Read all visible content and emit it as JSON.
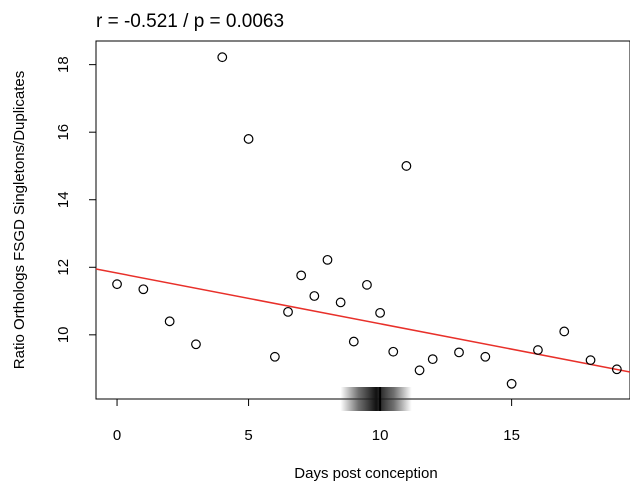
{
  "chart_data": {
    "type": "scatter",
    "title": "r = -0.521 / p = 0.0063",
    "xlabel": "Days post conception",
    "ylabel": "Ratio Orthologs FSGD Singletons/Duplicates",
    "xlim": [
      -0.8,
      19.5
    ],
    "ylim": [
      8.1,
      18.7
    ],
    "x_ticks": [
      0,
      5,
      10,
      15
    ],
    "y_ticks": [
      10,
      12,
      14,
      16,
      18
    ],
    "grid": false,
    "legend": "none",
    "colors": {
      "points": "#000000",
      "fit_line": "#e8302a",
      "axis": "#000000",
      "density_rug": "#333333"
    },
    "points": [
      {
        "x": 0,
        "y": 11.5
      },
      {
        "x": 1,
        "y": 11.35
      },
      {
        "x": 2,
        "y": 10.4
      },
      {
        "x": 3,
        "y": 9.72
      },
      {
        "x": 4,
        "y": 18.22
      },
      {
        "x": 5,
        "y": 15.8
      },
      {
        "x": 6,
        "y": 9.35
      },
      {
        "x": 6.5,
        "y": 10.68
      },
      {
        "x": 7,
        "y": 11.76
      },
      {
        "x": 7.5,
        "y": 11.15
      },
      {
        "x": 8,
        "y": 12.22
      },
      {
        "x": 8.5,
        "y": 10.96
      },
      {
        "x": 9,
        "y": 9.8
      },
      {
        "x": 9.5,
        "y": 11.48
      },
      {
        "x": 10,
        "y": 10.65
      },
      {
        "x": 10.5,
        "y": 9.5
      },
      {
        "x": 11,
        "y": 15.0
      },
      {
        "x": 11.5,
        "y": 8.95
      },
      {
        "x": 12,
        "y": 9.28
      },
      {
        "x": 13,
        "y": 9.48
      },
      {
        "x": 14,
        "y": 9.35
      },
      {
        "x": 15,
        "y": 8.55
      },
      {
        "x": 16,
        "y": 9.55
      },
      {
        "x": 17,
        "y": 10.1
      },
      {
        "x": 18,
        "y": 9.25
      },
      {
        "x": 19,
        "y": 8.98
      }
    ],
    "fit_line": {
      "x_start": -0.8,
      "y_start": 11.95,
      "x_end": 19.5,
      "y_end": 8.9
    },
    "density_rug": {
      "x_min": 8.5,
      "x_max": 11.2,
      "center": 10
    }
  }
}
